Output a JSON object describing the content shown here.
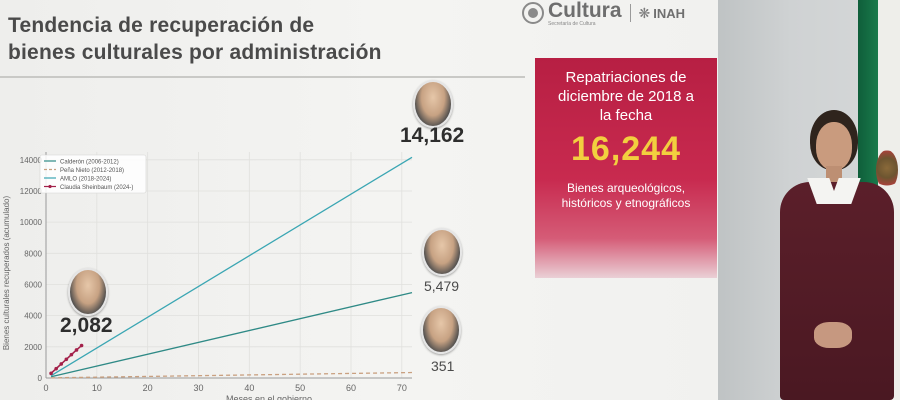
{
  "slide": {
    "title_lines": [
      "Tendencia de recuperación de",
      "bienes culturales por administración"
    ],
    "logos": {
      "cultura_name": "Cultura",
      "cultura_sub": "Secretaría de Cultura",
      "inah_icon": "inah-emblem-icon",
      "inah_name": "INAH"
    }
  },
  "annotations": {
    "amlo_total": "14,162",
    "calderon_total": "5,479",
    "pena_total": "351",
    "sheinbaum_total": "2,082"
  },
  "panel": {
    "heading_lines": [
      "Repatriaciones de",
      "diciembre de 2018 a",
      "la fecha"
    ],
    "number": "16,244",
    "description_lines": [
      "Bienes arqueológicos,",
      "históricos y etnográficos"
    ]
  },
  "colors": {
    "panel_red": "#b71f43",
    "panel_number": "#f2cf3f",
    "series_calderon": "#2f8a86",
    "series_pena": "#c9a080",
    "series_amlo": "#3aa6b3",
    "series_sheinbaum": "#a3214a"
  },
  "chart_data": {
    "type": "line",
    "xlabel": "Meses en el gobierno",
    "ylabel": "Bienes culturales recuperados (acumulado)",
    "xlim": [
      0,
      72
    ],
    "ylim": [
      0,
      14500
    ],
    "xticks": [
      0,
      10,
      20,
      30,
      40,
      50,
      60,
      70
    ],
    "yticks": [
      0,
      2000,
      4000,
      6000,
      8000,
      10000,
      12000,
      14000
    ],
    "grid": true,
    "legend_position": "top-left",
    "series": [
      {
        "name": "Calderón (2006-2012)",
        "color": "#2f8a86",
        "dash": "solid",
        "markers": false,
        "x": [
          1,
          72
        ],
        "y": [
          80,
          5479
        ]
      },
      {
        "name": "Peña Nieto (2012-2018)",
        "color": "#c9a080",
        "dash": "dashed",
        "markers": false,
        "x": [
          1,
          72
        ],
        "y": [
          10,
          351
        ]
      },
      {
        "name": "AMLO (2018-2024)",
        "color": "#3aa6b3",
        "dash": "solid",
        "markers": false,
        "x": [
          1,
          72
        ],
        "y": [
          150,
          14162
        ]
      },
      {
        "name": "Claudia Sheinbaum (2024-)",
        "color": "#a3214a",
        "dash": "solid",
        "markers": true,
        "x": [
          1,
          2,
          3,
          4,
          5,
          6,
          7
        ],
        "y": [
          300,
          600,
          900,
          1200,
          1500,
          1800,
          2082
        ]
      }
    ]
  }
}
